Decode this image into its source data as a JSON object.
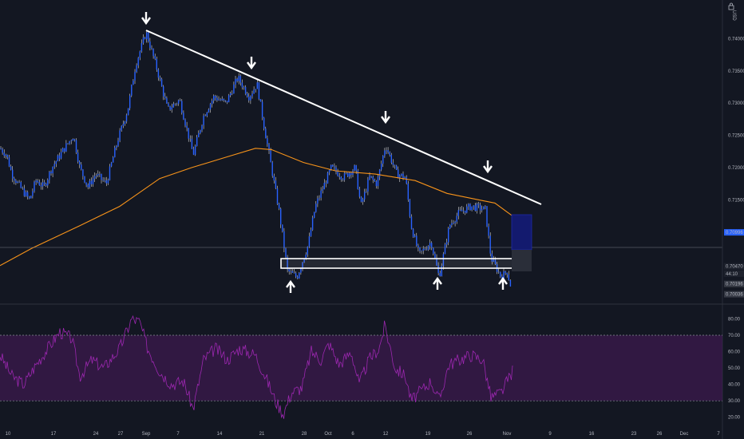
{
  "chart_data": [
    {
      "type": "candlestick",
      "currency": "USD",
      "x_ticks": [
        "10",
        "17",
        "24",
        "27",
        "Sep",
        "7",
        "14",
        "21",
        "28",
        "Oct",
        "6",
        "12",
        "19",
        "26",
        "Nov",
        "9",
        "16",
        "23",
        "26",
        "Dec",
        "7"
      ],
      "y_ticks": [
        0.74,
        0.735,
        0.73,
        0.725,
        0.72,
        0.715
      ],
      "ylim": [
        0.6992,
        0.746
      ],
      "price_labels": [
        {
          "text": "0.70996",
          "value": 0.70996,
          "color": "#2962ff"
        },
        {
          "text": "0.70470",
          "value": 0.7047,
          "color": "#1e222d"
        },
        {
          "text": "44:10",
          "value": 0.70355,
          "color": "#1e222d"
        },
        {
          "text": "0.70196",
          "value": 0.70196,
          "color": "#363a45"
        },
        {
          "text": "0.70036",
          "value": 0.70036,
          "color": "#363a45"
        }
      ],
      "candle_color": "#2962ff",
      "wick_color": "#ffffff",
      "ma_color": "#f7931a",
      "trendline_color": "#ffffff",
      "arrows_down_at": [
        "Aug 28",
        "Sep 19",
        "Oct 12",
        "Oct 30"
      ],
      "arrows_up_at": [
        "Sep 25",
        "Oct 20",
        "Nov 2"
      ]
    },
    {
      "type": "line",
      "indicator": "RSI",
      "y_ticks": [
        80.0,
        70.0,
        60.0,
        50.0,
        40.0,
        30.0,
        20.0
      ],
      "ylim": [
        15,
        88
      ],
      "band": [
        30,
        70
      ],
      "line_color": "#9c27b0",
      "band_color": "#4a1a5c"
    }
  ]
}
